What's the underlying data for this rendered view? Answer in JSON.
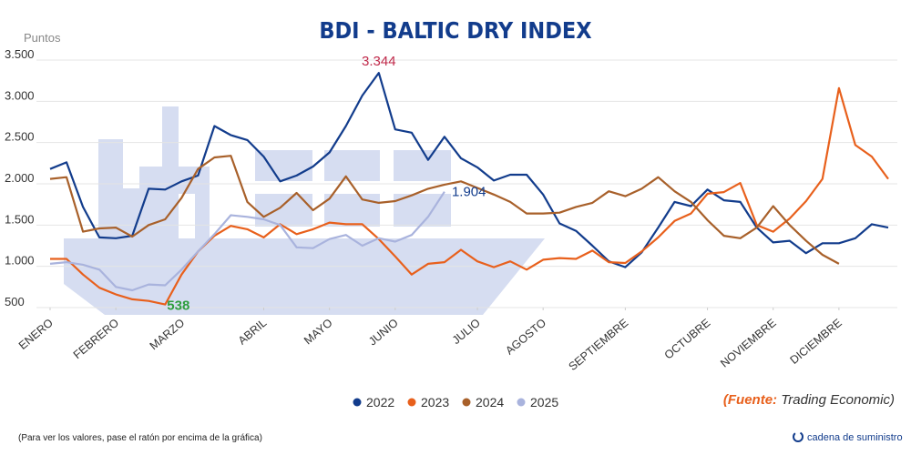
{
  "chart_data": {
    "type": "line",
    "title": "BDI - BALTIC DRY INDEX",
    "y_label": "Puntos",
    "x": [
      1,
      2,
      3,
      4,
      5,
      6,
      7,
      8,
      9,
      10,
      11,
      12,
      13,
      14,
      15,
      16,
      17,
      18,
      19,
      20,
      21,
      22,
      23,
      24,
      25,
      26,
      27,
      28,
      29,
      30,
      31,
      32,
      33,
      34,
      35,
      36,
      37,
      38,
      39,
      40,
      41,
      42,
      43,
      44,
      45,
      46,
      47,
      48,
      49,
      50,
      51,
      52
    ],
    "xlim": [
      1,
      52
    ],
    "xticks": [
      {
        "value": 1,
        "label": "ENERO"
      },
      {
        "value": 5,
        "label": "FEBRERO"
      },
      {
        "value": 9,
        "label": "MARZO"
      },
      {
        "value": 14,
        "label": "ABRIL"
      },
      {
        "value": 18,
        "label": "MAYO"
      },
      {
        "value": 22,
        "label": "JUNIO"
      },
      {
        "value": 27,
        "label": "JULIO"
      },
      {
        "value": 31,
        "label": "AGOSTO"
      },
      {
        "value": 36,
        "label": "SEPTIEMBRE"
      },
      {
        "value": 41,
        "label": "OCTUBRE"
      },
      {
        "value": 45,
        "label": "NOVIEMBRE"
      },
      {
        "value": 49,
        "label": "DICIEMBRE"
      }
    ],
    "ylim": [
      500,
      3500
    ],
    "yticks": [
      500,
      {
        "value": 1000,
        "label": "1.000"
      },
      {
        "value": 1500,
        "label": "1.500"
      },
      {
        "value": 2000,
        "label": "2.000"
      },
      {
        "value": 2500,
        "label": "2.500"
      },
      {
        "value": 3000,
        "label": "3.000"
      },
      {
        "value": 3500,
        "label": "3.500"
      }
    ],
    "grid": true,
    "legend": "bottom",
    "series": [
      {
        "name": "2022",
        "color": "#123c8c",
        "value_label_color": "#c0294a",
        "values": [
          2180,
          2260,
          1720,
          1350,
          1340,
          1370,
          1940,
          1930,
          2030,
          2100,
          2700,
          2590,
          2530,
          2330,
          2030,
          2100,
          2210,
          2380,
          2700,
          3070,
          3344,
          2660,
          2620,
          2290,
          2570,
          2310,
          2200,
          2040,
          2110,
          2110,
          1870,
          1520,
          1430,
          1250,
          1060,
          990,
          1170,
          1470,
          1780,
          1730,
          1930,
          1800,
          1780,
          1470,
          1290,
          1310,
          1160,
          1280,
          1280,
          1340,
          1510,
          1470
        ],
        "value_labels": [
          null,
          null,
          null,
          null,
          null,
          null,
          null,
          null,
          null,
          null,
          null,
          null,
          null,
          null,
          null,
          null,
          null,
          null,
          null,
          null,
          "3.344",
          null,
          null,
          null,
          null,
          null,
          null,
          null,
          null,
          null,
          null,
          null,
          null,
          null,
          null,
          null,
          null,
          null,
          null,
          null,
          null,
          null,
          null,
          null,
          null,
          null,
          null,
          null,
          null,
          null,
          null,
          null
        ]
      },
      {
        "name": "2023",
        "color": "#e8601c",
        "value_label_color": "#2e9e3e",
        "values": [
          1090,
          1090,
          900,
          740,
          660,
          600,
          580,
          538,
          900,
          1180,
          1370,
          1490,
          1450,
          1350,
          1510,
          1390,
          1450,
          1530,
          1510,
          1510,
          1330,
          1120,
          900,
          1030,
          1050,
          1200,
          1060,
          990,
          1060,
          960,
          1080,
          1100,
          1090,
          1190,
          1050,
          1040,
          1180,
          1350,
          1550,
          1640,
          1880,
          1900,
          2010,
          1500,
          1420,
          1580,
          1790,
          2060,
          3160,
          2470,
          2330,
          2060
        ],
        "value_labels": [
          null,
          null,
          null,
          null,
          null,
          null,
          null,
          "538",
          null,
          null,
          null,
          null,
          null,
          null,
          null,
          null,
          null,
          null,
          null,
          null,
          null,
          null,
          null,
          null,
          null,
          null,
          null,
          null,
          null,
          null,
          null,
          null,
          null,
          null,
          null,
          null,
          null,
          null,
          null,
          null,
          null,
          null,
          null,
          null,
          null,
          null,
          null,
          null,
          null,
          null,
          null,
          null
        ]
      },
      {
        "name": "2024",
        "color": "#a8602a",
        "values": [
          2060,
          2080,
          1420,
          1460,
          1470,
          1360,
          1500,
          1570,
          1830,
          2180,
          2320,
          2340,
          1780,
          1600,
          1710,
          1890,
          1680,
          1820,
          2090,
          1810,
          1770,
          1790,
          1860,
          1940,
          1990,
          2030,
          1950,
          1870,
          1780,
          1640,
          1640,
          1650,
          1720,
          1770,
          1910,
          1850,
          1940,
          2080,
          1910,
          1780,
          1560,
          1370,
          1340,
          1470,
          1730,
          1500,
          1310,
          1140,
          1030,
          null,
          null,
          null
        ]
      },
      {
        "name": "2025",
        "color": "#a9b3dd",
        "value_label_color": "#123c8c",
        "values": [
          1030,
          1050,
          1020,
          960,
          750,
          710,
          780,
          770,
          960,
          1180,
          1390,
          1620,
          1600,
          1570,
          1500,
          1230,
          1220,
          1330,
          1380,
          1250,
          1340,
          1300,
          1380,
          1600,
          1904,
          null,
          null,
          null,
          null,
          null,
          null,
          null,
          null,
          null,
          null,
          null,
          null,
          null,
          null,
          null,
          null,
          null,
          null,
          null,
          null,
          null,
          null,
          null,
          null,
          null,
          null,
          null
        ],
        "value_labels": [
          null,
          null,
          null,
          null,
          null,
          null,
          null,
          null,
          null,
          null,
          null,
          null,
          null,
          null,
          null,
          null,
          null,
          null,
          null,
          null,
          null,
          null,
          null,
          null,
          "1.904",
          null,
          null,
          null,
          null,
          null,
          null,
          null,
          null,
          null,
          null,
          null,
          null,
          null,
          null,
          null,
          null,
          null,
          null,
          null,
          null,
          null,
          null,
          null,
          null,
          null,
          null,
          null
        ]
      }
    ],
    "source_label": "(Fuente:",
    "source_text": "Trading Economic)",
    "footnote": "(Para ver los valores, pase el ratón por encima de la gráfica)",
    "logo": "cadena de suministro"
  }
}
